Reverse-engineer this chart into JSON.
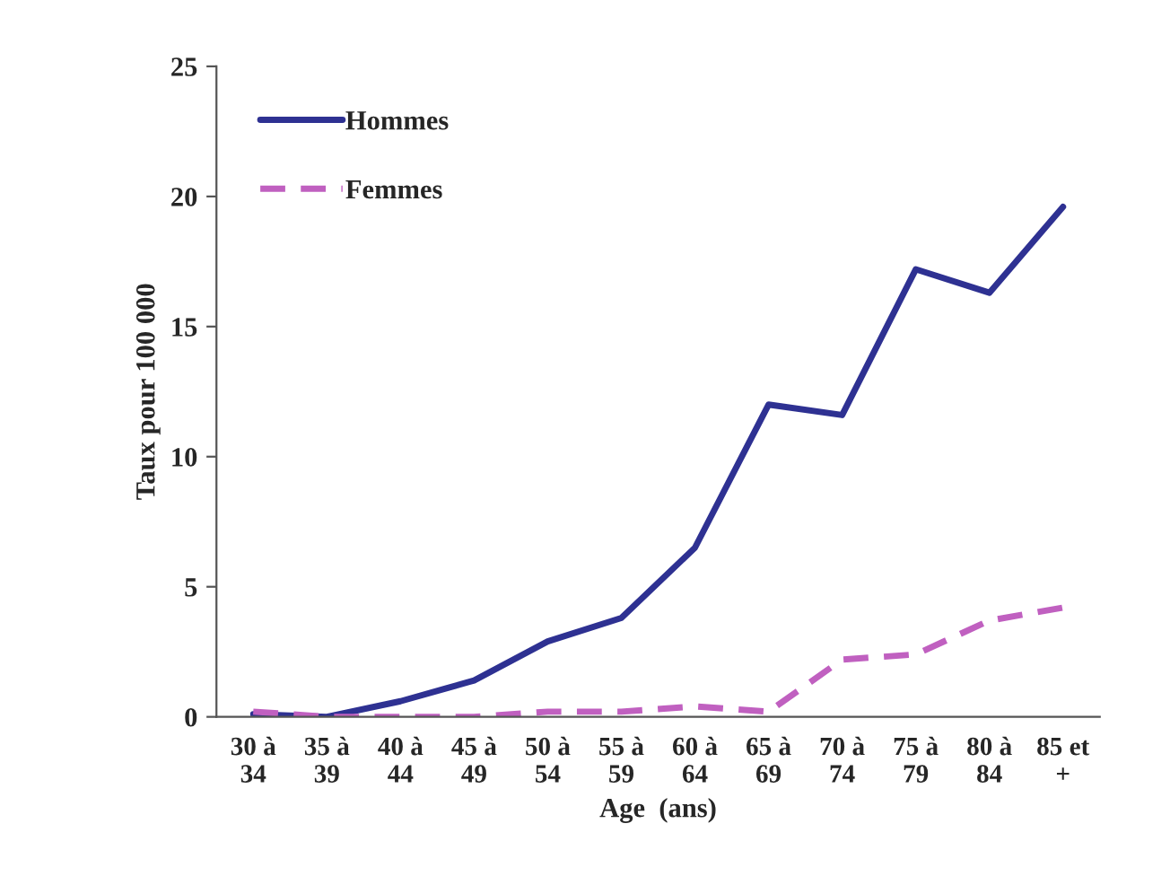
{
  "chart_data": {
    "type": "line",
    "xlabel": "Age  (ans)",
    "ylabel": "Taux pour 100 000",
    "categories": [
      "30 à\n34",
      "35 à\n39",
      "40 à\n44",
      "45 à\n49",
      "50 à\n54",
      "55 à\n59",
      "60 à\n64",
      "65 à\n69",
      "70 à\n74",
      "75 à\n79",
      "80 à\n84",
      "85 et\n+"
    ],
    "series": [
      {
        "name": "Hommes",
        "color": "#2e3192",
        "line_style": "solid",
        "values": [
          0.1,
          0,
          0.6,
          1.4,
          2.9,
          3.8,
          6.5,
          12,
          11.6,
          17.2,
          16.3,
          19.6
        ]
      },
      {
        "name": "Femmes",
        "color": "#c060c0",
        "line_style": "dashed",
        "values": [
          0.2,
          0,
          0,
          0,
          0.2,
          0.2,
          0.4,
          0.2,
          2.2,
          2.4,
          3.7,
          4.2
        ]
      }
    ],
    "ylim": [
      0,
      25
    ],
    "yticks": [
      0,
      5,
      10,
      15,
      20,
      25
    ],
    "grid": false,
    "legend": "top left",
    "marker": "none"
  }
}
